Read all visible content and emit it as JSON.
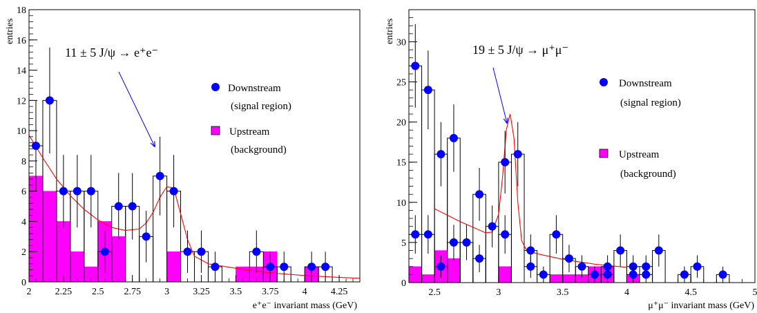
{
  "chart_data": [
    {
      "type": "histogram",
      "ylabel": "entries",
      "xlabel": "e⁺e⁻ invariant mass (GeV)",
      "xlim": [
        2.0,
        4.4
      ],
      "ylim": [
        0,
        18
      ],
      "xticks": [
        2,
        2.25,
        2.5,
        2.75,
        3,
        3.25,
        3.5,
        3.75,
        4,
        4.25
      ],
      "xtick_labels": [
        "2",
        "2.25",
        "2.5",
        "2.75",
        "3",
        "3.25",
        "3.5",
        "3.75",
        "4",
        "4.25"
      ],
      "yticks": [
        0,
        2,
        4,
        6,
        8,
        10,
        12,
        14,
        16,
        18
      ],
      "ytick_labels": [
        "0",
        "2",
        "4",
        "6",
        "8",
        "10",
        "12",
        "14",
        "16",
        "18"
      ],
      "annotation": "11 ± 5  J/ψ → e⁺e⁻",
      "bin_edges": [
        2.0,
        2.1,
        2.2,
        2.3,
        2.4,
        2.5,
        2.6,
        2.7,
        2.8,
        2.9,
        3.0,
        3.1,
        3.2,
        3.3,
        3.4,
        3.5,
        3.6,
        3.7,
        3.8,
        3.9,
        4.0,
        4.1,
        4.2
      ],
      "series": [
        {
          "name": "Downstream",
          "name_line2": "(signal region)",
          "color": "#0000ff",
          "x": [
            2.05,
            2.15,
            2.25,
            2.35,
            2.45,
            2.55,
            2.65,
            2.75,
            2.85,
            2.95,
            3.05,
            3.15,
            3.25,
            3.35,
            3.65,
            3.75,
            3.85,
            4.05,
            4.15
          ],
          "y": [
            9,
            12,
            6,
            6,
            6,
            2,
            5,
            5,
            3,
            7,
            6,
            2,
            2,
            1,
            2,
            1,
            1,
            1,
            1
          ],
          "yerr": [
            3.0,
            3.5,
            2.4,
            2.4,
            2.4,
            1.4,
            2.2,
            2.2,
            1.7,
            2.6,
            2.4,
            1.4,
            1.4,
            1.0,
            1.4,
            1.0,
            1.0,
            1.0,
            1.0
          ]
        },
        {
          "name": "Upstream",
          "name_line2": "(background)",
          "color": "#ff00ff",
          "values": [
            7,
            6,
            4,
            2,
            1,
            4,
            3,
            0,
            0,
            0,
            2,
            0,
            0,
            0,
            0,
            1,
            1,
            2,
            0,
            0,
            1,
            0
          ]
        },
        {
          "name": "fit",
          "color": "#ff0000",
          "x": [
            2.0,
            2.1,
            2.2,
            2.3,
            2.4,
            2.5,
            2.6,
            2.7,
            2.8,
            2.85,
            2.9,
            2.95,
            3.0,
            3.05,
            3.1,
            3.15,
            3.2,
            3.3,
            3.5,
            3.75,
            4.0,
            4.25,
            4.4
          ],
          "y": [
            9.7,
            8.2,
            6.8,
            5.7,
            4.8,
            4.1,
            3.6,
            3.4,
            3.5,
            3.9,
            4.6,
            5.6,
            6.3,
            6.2,
            4.5,
            2.8,
            1.7,
            1.2,
            0.9,
            0.6,
            0.42,
            0.3,
            0.24
          ]
        }
      ]
    },
    {
      "type": "histogram",
      "ylabel": "entries",
      "xlabel": "μ⁺μ⁻ invariant mass (GeV)",
      "xlim": [
        2.3,
        5.0
      ],
      "ylim": [
        0,
        34
      ],
      "xticks": [
        2.5,
        3,
        3.5,
        4,
        4.5,
        5
      ],
      "xtick_labels": [
        "2.5",
        "3",
        "3.5",
        "4",
        "4.5",
        "5"
      ],
      "yticks": [
        0,
        5,
        10,
        15,
        20,
        25,
        30
      ],
      "ytick_labels": [
        "0",
        "5",
        "10",
        "15",
        "20",
        "25",
        "30"
      ],
      "annotation": "19 ± 5  J/ψ → μ⁺μ⁻",
      "series": [
        {
          "name": "Downstream",
          "name_line2": "(signal region)",
          "color": "#0000ff",
          "x": [
            2.35,
            2.45,
            2.55,
            2.65,
            2.75,
            2.85,
            2.95,
            3.05,
            3.15,
            3.25,
            3.35,
            3.45,
            3.55,
            3.65,
            3.75,
            3.85,
            3.95,
            4.05,
            4.15,
            4.25,
            4.45,
            4.55,
            4.75
          ],
          "y": [
            27,
            24,
            16,
            18,
            5,
            11,
            7,
            15,
            16,
            4,
            1,
            6,
            3,
            2,
            1,
            2,
            4,
            2,
            2,
            4,
            1,
            2,
            1
          ],
          "yerr": [
            5.2,
            4.9,
            4.0,
            4.2,
            2.2,
            3.3,
            2.6,
            3.9,
            4.0,
            2.0,
            1.0,
            2.4,
            1.7,
            1.4,
            1.0,
            1.4,
            2.0,
            1.4,
            1.4,
            2.0,
            1.0,
            1.4,
            1.0
          ]
        },
        {
          "name": "",
          "color": "#0000ff",
          "x": [
            2.35,
            2.45,
            2.55,
            2.65,
            2.85,
            3.05,
            3.25,
            3.85,
            4.05,
            4.15
          ],
          "y": [
            6,
            6,
            2,
            5,
            3,
            6,
            2,
            1,
            1,
            1
          ],
          "yerr": [
            2.4,
            2.4,
            1.4,
            2.2,
            1.7,
            2.4,
            1.4,
            1.0,
            1.0,
            1.0
          ]
        },
        {
          "name": "Upstream",
          "name_line2": "(background)",
          "color": "#ff00ff",
          "bins": [
            [
              2.3,
              2.4,
              2
            ],
            [
              2.4,
              2.5,
              1
            ],
            [
              2.5,
              2.6,
              4
            ],
            [
              2.6,
              2.7,
              3
            ],
            [
              3.0,
              3.1,
              2
            ],
            [
              3.4,
              3.5,
              1
            ],
            [
              3.5,
              3.6,
              1
            ],
            [
              3.6,
              3.7,
              1
            ],
            [
              3.7,
              3.8,
              2
            ],
            [
              3.8,
              3.9,
              2
            ],
            [
              4.0,
              4.1,
              1
            ]
          ]
        },
        {
          "name": "fit",
          "color": "#ff0000",
          "x": [
            2.5,
            2.6,
            2.7,
            2.8,
            2.9,
            2.95,
            3.0,
            3.03,
            3.06,
            3.09,
            3.12,
            3.15,
            3.18,
            3.22,
            3.3,
            3.5,
            3.75,
            4.0
          ],
          "y": [
            9.2,
            8.4,
            7.6,
            6.9,
            6.2,
            6.3,
            8.5,
            13,
            19,
            21,
            18,
            10,
            5.2,
            4.0,
            3.6,
            2.9,
            2.3,
            1.9
          ]
        }
      ]
    }
  ]
}
